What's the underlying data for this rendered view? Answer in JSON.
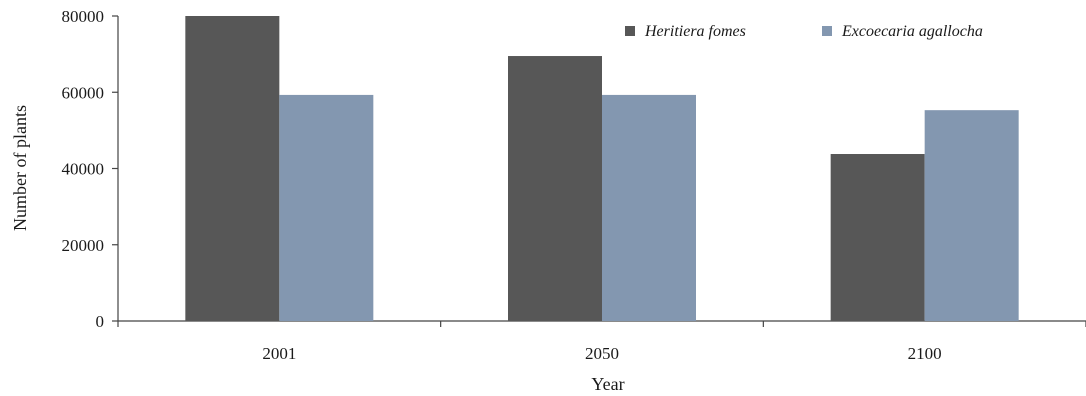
{
  "chart_data": {
    "type": "bar",
    "categories": [
      "2001",
      "2050",
      "2100"
    ],
    "series": [
      {
        "name": "Heritiera fomes",
        "color": "#575757",
        "values": [
          80500,
          69500,
          43800
        ]
      },
      {
        "name": "Excoecaria agallocha",
        "color": "#8397b0",
        "values": [
          59300,
          59300,
          55300
        ]
      }
    ],
    "xlabel": "Year",
    "ylabel": "Number of plants",
    "ylim": [
      0,
      80000
    ],
    "yticks": [
      "0",
      "20000",
      "40000",
      "60000",
      "80000"
    ],
    "grid": false,
    "legend_position": "top-right"
  }
}
